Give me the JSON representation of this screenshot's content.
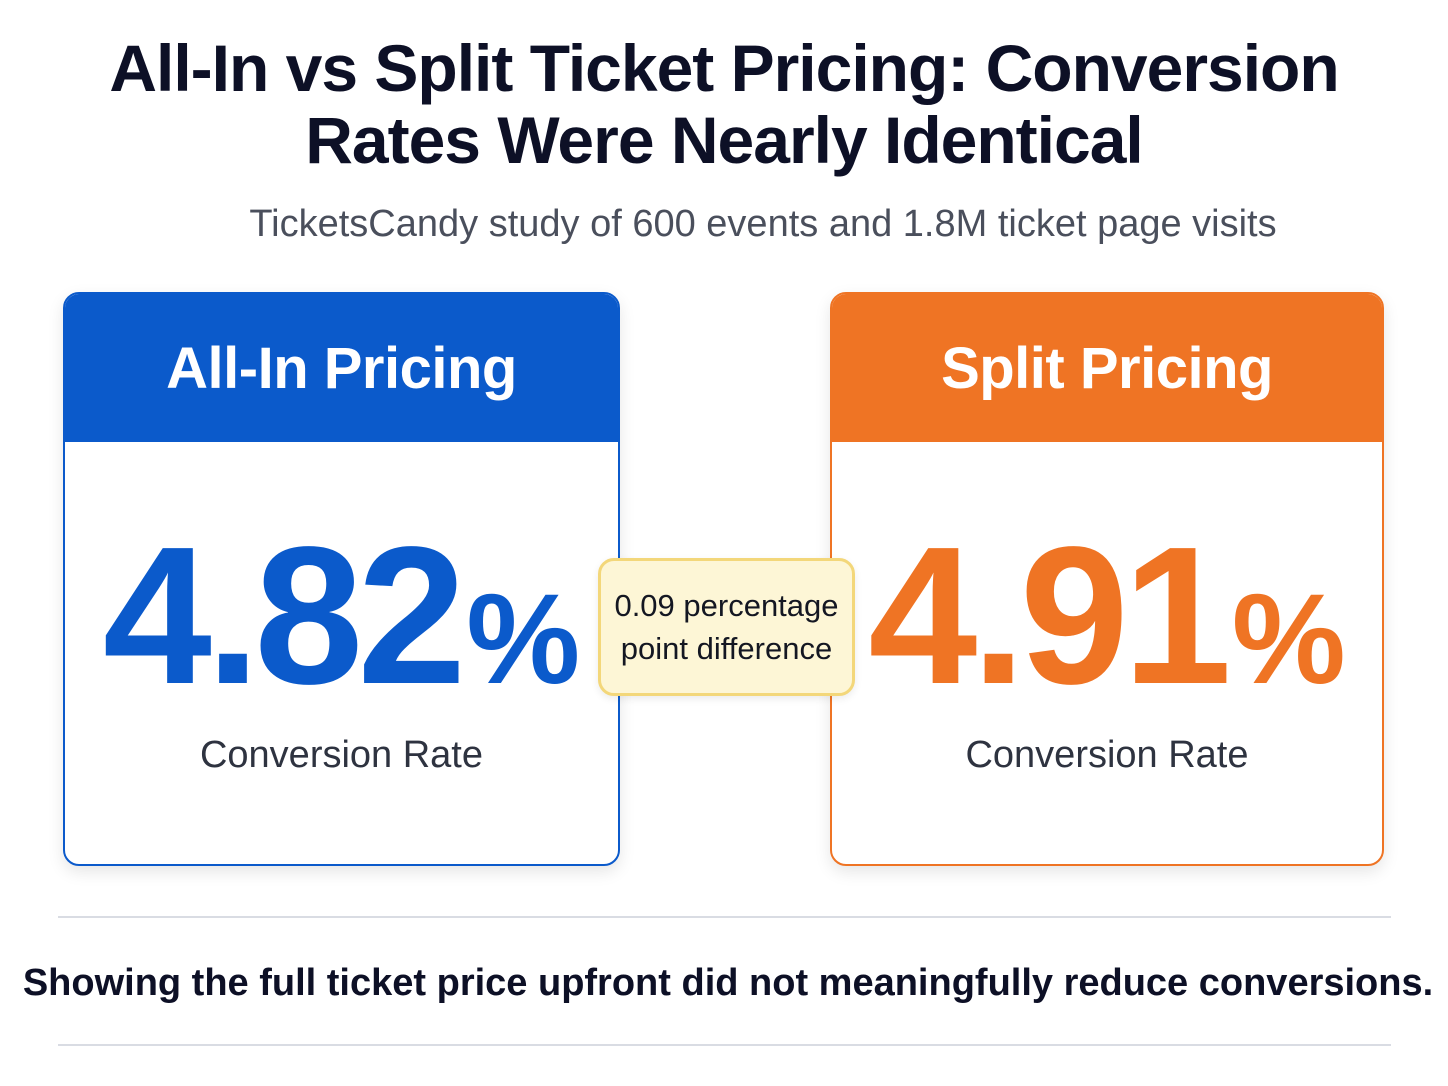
{
  "header": {
    "title_line1": "All-In vs Split Ticket Pricing: Conversion",
    "title_line2": "Rates Were Nearly Identical",
    "subtitle": "TicketsCandy study of 600 events and 1.8M ticket page visits"
  },
  "cards": [
    {
      "label": "All-In Pricing",
      "value": "4.82",
      "unit": "%",
      "metric_label": "Conversion Rate",
      "color": "#0b5acb"
    },
    {
      "label": "Split Pricing",
      "value": "4.91",
      "unit": "%",
      "metric_label": "Conversion Rate",
      "color": "#ef7424"
    }
  ],
  "difference": {
    "line1": "0.09 percentage",
    "line2": "point difference",
    "background": "#fdf6d6",
    "border": "#f3d77a"
  },
  "conclusion": "Showing the full ticket price upfront did not meaningfully reduce conversions."
}
